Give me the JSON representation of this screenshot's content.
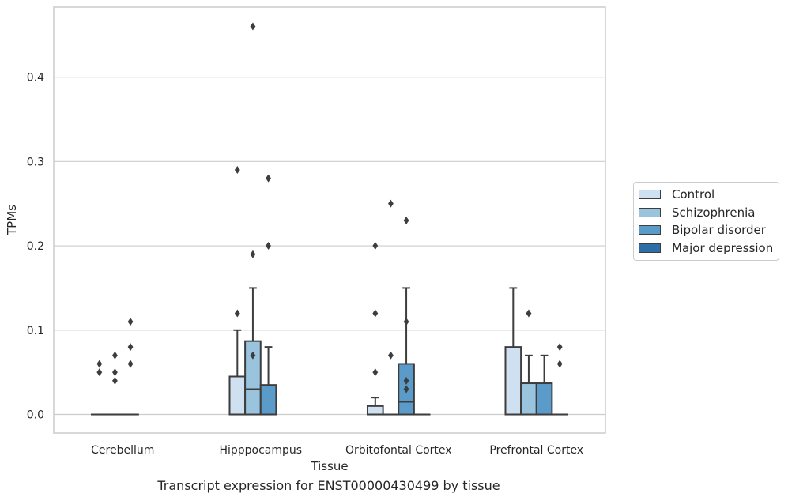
{
  "chart_data": {
    "type": "box",
    "title": "",
    "caption": "Transcript expression for ENST00000430499 by tissue",
    "xlabel": "Tissue",
    "ylabel": "TPMs",
    "ylim": [
      -0.022,
      0.483
    ],
    "yticks": [
      0.0,
      0.1,
      0.2,
      0.3,
      0.4
    ],
    "ytick_labels": [
      "0.0",
      "0.1",
      "0.2",
      "0.3",
      "0.4"
    ],
    "grid": true,
    "legend_position": "right",
    "categories": [
      "Cerebellum",
      "Hipppocampus",
      "Orbitofontal Cortex",
      "Prefrontal Cortex"
    ],
    "series": [
      {
        "name": "Control",
        "color": "#cfe0f0",
        "boxes": [
          {
            "q1": 0,
            "median": 0,
            "q3": 0,
            "whisker_low": 0,
            "whisker_high": 0,
            "outliers": [
              0.06,
              0.05
            ]
          },
          {
            "q1": 0,
            "median": 0,
            "q3": 0.045,
            "whisker_low": 0,
            "whisker_high": 0.1,
            "outliers": [
              0.29,
              0.12
            ]
          },
          {
            "q1": 0,
            "median": 0,
            "q3": 0.01,
            "whisker_low": 0,
            "whisker_high": 0.02,
            "outliers": [
              0.2,
              0.12,
              0.05
            ]
          },
          {
            "q1": 0,
            "median": 0,
            "q3": 0.08,
            "whisker_low": 0,
            "whisker_high": 0.15,
            "outliers": []
          }
        ]
      },
      {
        "name": "Schizophrenia",
        "color": "#9ac4de",
        "boxes": [
          {
            "q1": 0,
            "median": 0,
            "q3": 0,
            "whisker_low": 0,
            "whisker_high": 0,
            "outliers": [
              0.07,
              0.05,
              0.04
            ]
          },
          {
            "q1": 0,
            "median": 0.03,
            "q3": 0.087,
            "whisker_low": 0,
            "whisker_high": 0.15,
            "outliers": [
              0.46,
              0.19,
              0.07
            ]
          },
          {
            "q1": 0,
            "median": 0,
            "q3": 0,
            "whisker_low": 0,
            "whisker_high": 0,
            "outliers": [
              0.25,
              0.07
            ]
          },
          {
            "q1": 0,
            "median": 0,
            "q3": 0.037,
            "whisker_low": 0,
            "whisker_high": 0.07,
            "outliers": [
              0.12
            ]
          }
        ]
      },
      {
        "name": "Bipolar disorder",
        "color": "#5b9bc9",
        "boxes": [
          {
            "q1": 0,
            "median": 0,
            "q3": 0,
            "whisker_low": 0,
            "whisker_high": 0,
            "outliers": [
              0.11,
              0.08,
              0.06
            ]
          },
          {
            "q1": 0,
            "median": 0,
            "q3": 0.035,
            "whisker_low": 0,
            "whisker_high": 0.08,
            "outliers": [
              0.28,
              0.2
            ]
          },
          {
            "q1": 0,
            "median": 0.015,
            "q3": 0.06,
            "whisker_low": 0,
            "whisker_high": 0.15,
            "outliers": [
              0.23,
              0.11,
              0.04,
              0.03
            ]
          },
          {
            "q1": 0,
            "median": 0,
            "q3": 0.037,
            "whisker_low": 0,
            "whisker_high": 0.07,
            "outliers": []
          }
        ]
      },
      {
        "name": "Major depression",
        "color": "#2d6ea6",
        "boxes": [
          null,
          null,
          {
            "q1": 0,
            "median": 0,
            "q3": 0,
            "whisker_low": 0,
            "whisker_high": 0,
            "outliers": []
          },
          {
            "q1": 0,
            "median": 0,
            "q3": 0,
            "whisker_low": 0,
            "whisker_high": 0,
            "outliers": [
              0.08,
              0.06
            ]
          }
        ]
      }
    ]
  }
}
